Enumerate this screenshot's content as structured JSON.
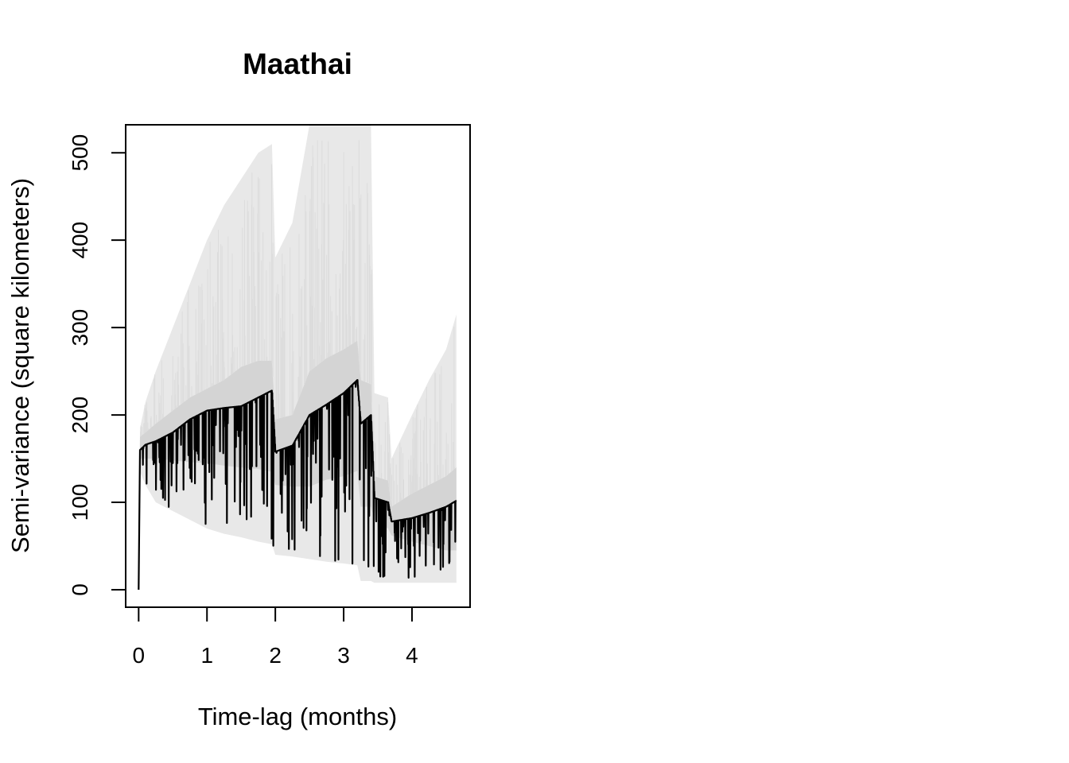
{
  "chart_data": {
    "type": "line",
    "title": "Maathai",
    "xlabel": "Time-lag (months)",
    "ylabel": "Semi-variance (square kilometers)",
    "xlim": [
      -0.19,
      4.85
    ],
    "ylim": [
      -20,
      532
    ],
    "xticks": [
      "0",
      "1",
      "2",
      "3",
      "4"
    ],
    "yticks": [
      "0",
      "100",
      "200",
      "300",
      "400",
      "500"
    ],
    "grid": false,
    "legend": "none",
    "colors": {
      "line": "#000000",
      "band_inner": "#d4d4d4",
      "band_outer": "#e8e8e8"
    },
    "series": [
      {
        "values": {
          "x": [
            0.0,
            0.02,
            0.1,
            0.25,
            0.5,
            0.75,
            1.0,
            1.25,
            1.5,
            1.75,
            1.95,
            2.0,
            2.25,
            2.5,
            2.75,
            3.0,
            3.2,
            3.25,
            3.4,
            3.45,
            3.65,
            3.7,
            4.0,
            4.25,
            4.5,
            4.65
          ],
          "y": [
            0,
            160,
            166,
            170,
            180,
            195,
            205,
            208,
            210,
            220,
            228,
            158,
            165,
            200,
            212,
            225,
            240,
            190,
            200,
            105,
            100,
            78,
            82,
            88,
            95,
            102
          ],
          "lower": [
            0,
            150,
            150,
            150,
            148,
            146,
            145,
            142,
            140,
            138,
            135,
            120,
            118,
            118,
            126,
            130,
            136,
            95,
            95,
            80,
            70,
            62,
            55,
            50,
            45,
            45
          ],
          "upper": [
            0,
            175,
            180,
            190,
            205,
            220,
            230,
            240,
            255,
            262,
            262,
            195,
            200,
            250,
            265,
            275,
            285,
            240,
            235,
            130,
            125,
            95,
            110,
            120,
            130,
            140
          ],
          "outer_lower": [
            0,
            135,
            120,
            100,
            90,
            80,
            70,
            64,
            60,
            55,
            52,
            40,
            38,
            35,
            32,
            30,
            28,
            10,
            10,
            8,
            8,
            8,
            8,
            8,
            8,
            8
          ],
          "outer_upper": [
            0,
            185,
            215,
            250,
            300,
            350,
            400,
            440,
            470,
            500,
            510,
            380,
            420,
            532,
            532,
            532,
            532,
            532,
            532,
            225,
            220,
            150,
            200,
            240,
            275,
            315
          ]
        }
      }
    ]
  }
}
